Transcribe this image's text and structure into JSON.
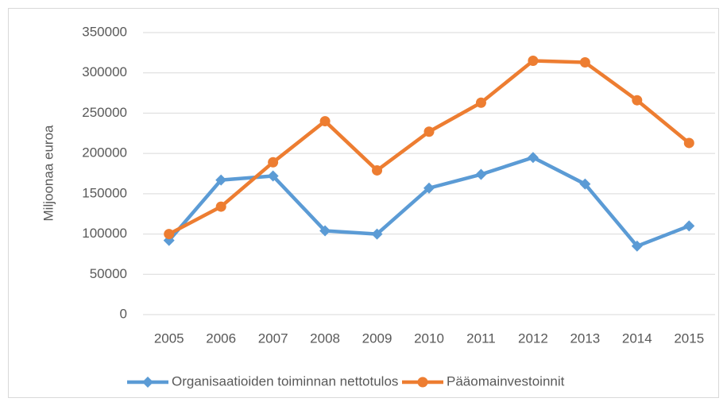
{
  "chart_data": {
    "type": "line",
    "y_label": "Miljoonaa euroa",
    "categories": [
      "2005",
      "2006",
      "2007",
      "2008",
      "2009",
      "2010",
      "2011",
      "2012",
      "2013",
      "2014",
      "2015"
    ],
    "series": [
      {
        "name": "Organisaatioiden toiminnan nettotulos",
        "color": "#5b9bd5",
        "marker": "diamond",
        "values": [
          92000,
          167000,
          172000,
          104000,
          100000,
          157000,
          174000,
          195000,
          162000,
          85000,
          110000
        ]
      },
      {
        "name": "Pääomainvestoinnit",
        "color": "#ed7d31",
        "marker": "circle",
        "values": [
          100000,
          134000,
          189000,
          240000,
          179000,
          227000,
          263000,
          315000,
          313000,
          266000,
          213000
        ]
      }
    ],
    "ylim": [
      0,
      350000
    ],
    "yticks": [
      0,
      50000,
      100000,
      150000,
      200000,
      250000,
      300000,
      350000
    ],
    "grid": true,
    "legend": "bottom"
  }
}
